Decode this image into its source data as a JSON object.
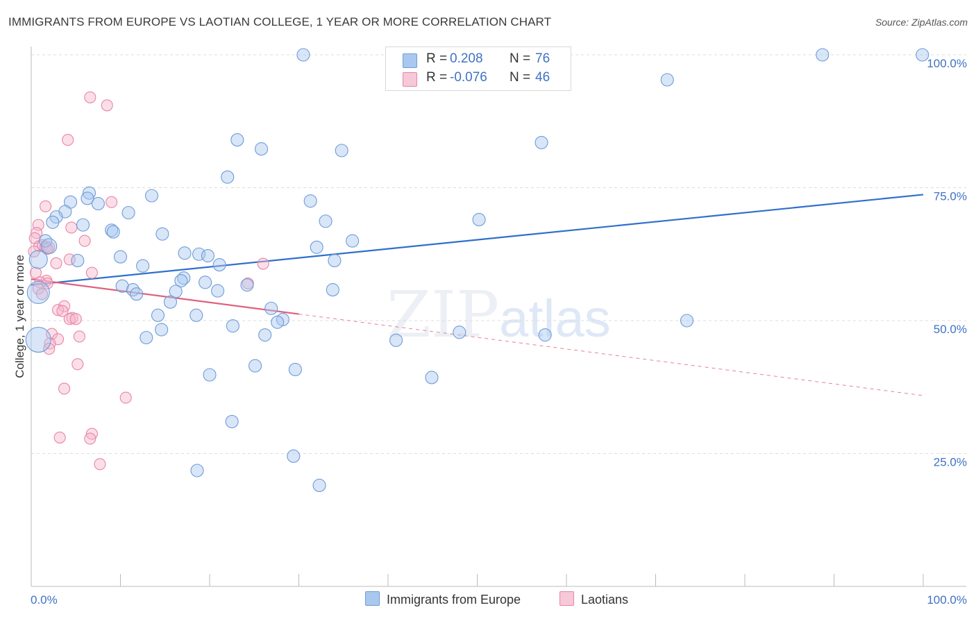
{
  "title": "IMMIGRANTS FROM EUROPE VS LAOTIAN COLLEGE, 1 YEAR OR MORE CORRELATION CHART",
  "source": "Source: ZipAtlas.com",
  "watermark": {
    "zip": "ZIP",
    "atlas": "atlas"
  },
  "colors": {
    "blue_fill": "#a9c8ef",
    "blue_stroke": "#6e9bd8",
    "blue_line": "#2f6fcc",
    "pink_fill": "#f6b8cd",
    "pink_stroke": "#e884a6",
    "pink_line": "#e0607f",
    "tick_color": "#3f72c4",
    "grid": "#dcdcdc"
  },
  "legend": {
    "rows": [
      {
        "r_label": "R =",
        "r_value": "0.208",
        "n_label": "N =",
        "n_value": "76"
      },
      {
        "r_label": "R =",
        "r_value": "-0.076",
        "n_label": "N =",
        "n_value": "46"
      }
    ]
  },
  "bottom_legend": [
    {
      "label": "Immigrants from Europe"
    },
    {
      "label": "Laotians"
    }
  ],
  "chart_data": {
    "type": "scatter",
    "title": "IMMIGRANTS FROM EUROPE VS LAOTIAN COLLEGE, 1 YEAR OR MORE CORRELATION CHART",
    "xlabel": "",
    "ylabel": "College, 1 year or more",
    "xlim": [
      0,
      100
    ],
    "ylim": [
      0,
      100
    ],
    "x_tick_labels": [
      {
        "value": 0,
        "label": "0.0%"
      },
      {
        "value": 100,
        "label": "100.0%"
      }
    ],
    "y_tick_labels": [
      {
        "value": 25,
        "label": "25.0%"
      },
      {
        "value": 50,
        "label": "50.0%"
      },
      {
        "value": 75,
        "label": "75.0%"
      },
      {
        "value": 100,
        "label": "100.0%"
      }
    ],
    "series": [
      {
        "name": "Immigrants from Europe",
        "R": 0.208,
        "N": 76,
        "trend": {
          "x0": 0,
          "y0": 56.7,
          "x1": 100,
          "y1": 73.7,
          "solid_until": 100
        },
        "points": [
          [
            30.5,
            100
          ],
          [
            88.7,
            100
          ],
          [
            99.9,
            100
          ],
          [
            71.3,
            95.3
          ],
          [
            23.1,
            84
          ],
          [
            25.8,
            82.3
          ],
          [
            34.8,
            82
          ],
          [
            57.2,
            83.5
          ],
          [
            22.0,
            77
          ],
          [
            6.5,
            74
          ],
          [
            13.5,
            73.5
          ],
          [
            6.3,
            73
          ],
          [
            4.4,
            72.3
          ],
          [
            7.5,
            72
          ],
          [
            3.8,
            70.5
          ],
          [
            10.9,
            70.3
          ],
          [
            2.8,
            69.5
          ],
          [
            2.4,
            68.5
          ],
          [
            5.8,
            68
          ],
          [
            9.0,
            67
          ],
          [
            9.2,
            66.7
          ],
          [
            14.7,
            66.3
          ],
          [
            31.3,
            72.5
          ],
          [
            33.0,
            68.7
          ],
          [
            50.2,
            69
          ],
          [
            36.0,
            65
          ],
          [
            1.6,
            65
          ],
          [
            32.0,
            63.8
          ],
          [
            2.0,
            64
          ],
          [
            17.2,
            62.7
          ],
          [
            18.8,
            62.5
          ],
          [
            19.8,
            62.2
          ],
          [
            10.0,
            62
          ],
          [
            5.2,
            61.3
          ],
          [
            34.0,
            61.3
          ],
          [
            0.8,
            61.5
          ],
          [
            12.5,
            60.3
          ],
          [
            21.1,
            60.5
          ],
          [
            17.1,
            58
          ],
          [
            16.8,
            57.5
          ],
          [
            19.5,
            57.2
          ],
          [
            10.2,
            56.5
          ],
          [
            24.2,
            56.7
          ],
          [
            11.4,
            55.8
          ],
          [
            11.8,
            55
          ],
          [
            16.2,
            55.5
          ],
          [
            20.9,
            55.6
          ],
          [
            33.8,
            55.8
          ],
          [
            0.8,
            55.3
          ],
          [
            15.6,
            53.5
          ],
          [
            26.9,
            52.3
          ],
          [
            14.2,
            51
          ],
          [
            18.5,
            51
          ],
          [
            28.2,
            50.2
          ],
          [
            27.6,
            49.7
          ],
          [
            22.6,
            49
          ],
          [
            73.5,
            50
          ],
          [
            14.6,
            48.3
          ],
          [
            48.0,
            47.8
          ],
          [
            26.2,
            47.3
          ],
          [
            12.9,
            46.8
          ],
          [
            57.6,
            47.3
          ],
          [
            40.9,
            46.3
          ],
          [
            0.8,
            46.4
          ],
          [
            25.1,
            41.5
          ],
          [
            29.6,
            40.8
          ],
          [
            20.0,
            39.8
          ],
          [
            44.9,
            39.3
          ],
          [
            22.5,
            31
          ],
          [
            29.4,
            24.5
          ],
          [
            18.6,
            21.8
          ],
          [
            32.3,
            19
          ]
        ],
        "sizes": {
          "default": 9,
          "big": [
            [
              0.8,
              55.3,
              16
            ],
            [
              0.8,
              46.4,
              18
            ],
            [
              0.8,
              61.5,
              13
            ],
            [
              2.0,
              64,
              11
            ]
          ]
        }
      },
      {
        "name": "Laotians",
        "R": -0.076,
        "N": 46,
        "trend": {
          "x0": 0,
          "y0": 57.8,
          "x1": 100,
          "y1": 35.9,
          "solid_until": 30
        },
        "points": [
          [
            6.6,
            92
          ],
          [
            8.5,
            90.5
          ],
          [
            4.1,
            84
          ],
          [
            1.6,
            71.5
          ],
          [
            9.0,
            72.3
          ],
          [
            0.8,
            68
          ],
          [
            4.5,
            67.5
          ],
          [
            0.6,
            66.5
          ],
          [
            0.4,
            65.5
          ],
          [
            6.0,
            65
          ],
          [
            0.9,
            64
          ],
          [
            1.3,
            64.2
          ],
          [
            1.6,
            63.8
          ],
          [
            2.0,
            63.8
          ],
          [
            1.8,
            63.5
          ],
          [
            0.3,
            63
          ],
          [
            4.3,
            61.5
          ],
          [
            2.8,
            60.8
          ],
          [
            26.0,
            60.7
          ],
          [
            0.5,
            59
          ],
          [
            6.8,
            59
          ],
          [
            1.7,
            57.5
          ],
          [
            1.0,
            57.2
          ],
          [
            1.8,
            57
          ],
          [
            24.3,
            57
          ],
          [
            0.8,
            56
          ],
          [
            1.2,
            55
          ],
          [
            3.7,
            52.7
          ],
          [
            3.0,
            52
          ],
          [
            3.5,
            51.8
          ],
          [
            4.6,
            50.5
          ],
          [
            4.3,
            50.3
          ],
          [
            5.0,
            50.3
          ],
          [
            2.3,
            47.5
          ],
          [
            3.0,
            46.5
          ],
          [
            5.4,
            47
          ],
          [
            2.1,
            45.7
          ],
          [
            2.0,
            44.7
          ],
          [
            5.2,
            41.8
          ],
          [
            3.7,
            37.2
          ],
          [
            10.6,
            35.5
          ],
          [
            6.8,
            28.7
          ],
          [
            3.2,
            28
          ],
          [
            6.6,
            27.8
          ],
          [
            7.7,
            23
          ]
        ]
      }
    ]
  }
}
